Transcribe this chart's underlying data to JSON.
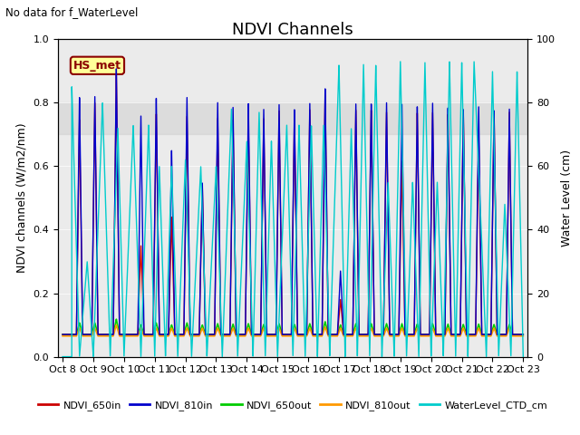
{
  "title": "NDVI Channels",
  "subtitle": "No data for f_WaterLevel",
  "ylabel_left": "NDVI channels (W/m2/nm)",
  "ylabel_right": "Water Level (cm)",
  "annotation_text": "HS_met",
  "ylim_left": [
    0.0,
    1.0
  ],
  "ylim_right": [
    0,
    100
  ],
  "xlim": [
    7.85,
    23.15
  ],
  "xtick_labels": [
    "Oct 8",
    "Oct 9",
    "Oct 10",
    "Oct 11",
    "Oct 12",
    "Oct 13",
    "Oct 14",
    "Oct 15",
    "Oct 16",
    "Oct 17",
    "Oct 18",
    "Oct 19",
    "Oct 20",
    "Oct 21",
    "Oct 22",
    "Oct 23"
  ],
  "xtick_positions": [
    8,
    9,
    10,
    11,
    12,
    13,
    14,
    15,
    16,
    17,
    18,
    19,
    20,
    21,
    22,
    23
  ],
  "colors": {
    "NDVI_650in": "#cc0000",
    "NDVI_810in": "#0000cc",
    "NDVI_650out": "#00cc00",
    "NDVI_810out": "#ff9900",
    "WaterLevel_CTD_cm": "#00cccc"
  },
  "background_color": "#ffffff",
  "plot_bg_color": "#ebebeb",
  "gray_band": [
    0.7,
    0.8
  ],
  "title_fontsize": 13,
  "label_fontsize": 9,
  "tick_fontsize": 8,
  "legend_fontsize": 8,
  "figsize": [
    6.4,
    4.8
  ],
  "dpi": 100
}
